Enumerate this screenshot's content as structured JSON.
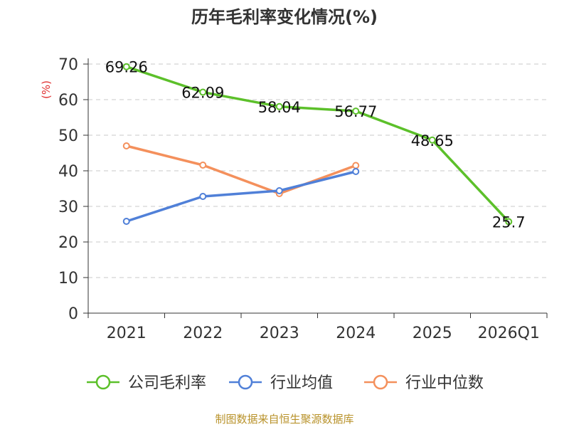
{
  "chart_data": {
    "type": "line",
    "title": "历年毛利率变化情况(%)",
    "ylabel": "(%)",
    "xlabel": "",
    "categories": [
      "2021",
      "2022",
      "2023",
      "2024",
      "2025",
      "2026Q1"
    ],
    "ylim": [
      0,
      70
    ],
    "yticks": [
      0,
      10,
      20,
      30,
      40,
      50,
      60,
      70
    ],
    "grid": true,
    "legend_position": "bottom",
    "series": [
      {
        "name": "公司毛利率",
        "color": "#5cc02a",
        "values": [
          69.26,
          62.09,
          58.04,
          56.77,
          48.65,
          25.7
        ],
        "labels": [
          "69.26",
          "62.09",
          "58.04",
          "56.77",
          "48.65",
          "25.7"
        ]
      },
      {
        "name": "行业均值",
        "color": "#5080d8",
        "values": [
          25.8,
          32.8,
          34.4,
          39.8,
          null,
          null
        ]
      },
      {
        "name": "行业中位数",
        "color": "#f4905c",
        "values": [
          47.0,
          41.6,
          33.6,
          41.5,
          null,
          null
        ]
      }
    ]
  },
  "source": "制图数据来自恒生聚源数据库"
}
